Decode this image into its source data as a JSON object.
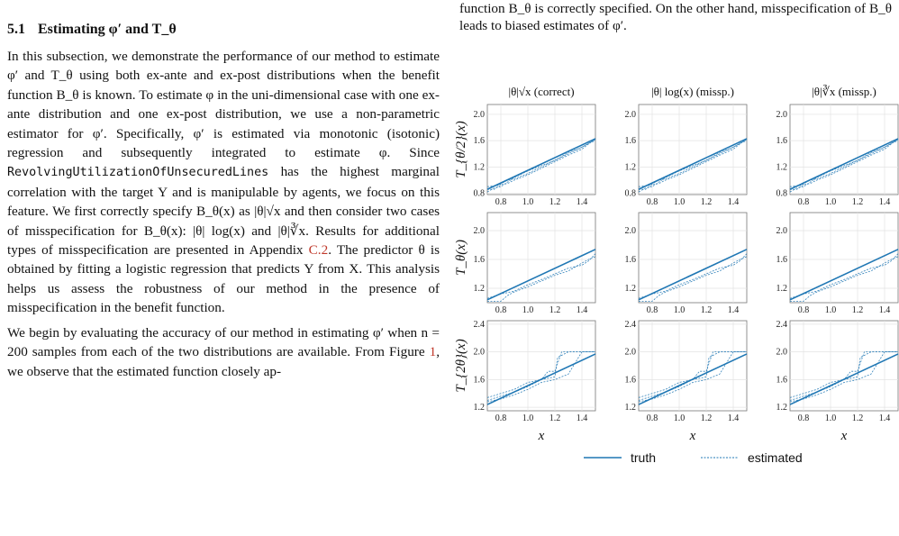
{
  "section": {
    "number": "5.1",
    "title": "Estimating φ′ and T_θ"
  },
  "left_paragraphs": {
    "p1_a": "In this subsection, we demonstrate the performance of our method to estimate φ′ and T_θ using both ex-ante and ex-post distributions when the benefit function B_θ is known. To estimate φ in the uni-dimensional case with one ex-ante distribution and one ex-post distribution, we use a non-parametric estimator for φ′. Specifically, φ′ is estimated via monotonic (isotonic) regression and subsequently integrated to estimate φ. Since",
    "p1_code": "RevolvingUtilizationOfUnsecuredLines",
    "p1_b": "has the highest marginal correlation with the target Y and is manipulable by agents, we focus on this feature. We first correctly specify B_θ(x) as |θ|√x and then consider two cases of misspecification for B_θ(x): |θ| log(x) and |θ|∛x. Results for additional types of misspecification are presented in Appendix",
    "p1_ref": "C.2",
    "p1_c": ". The predictor θ is obtained by fitting a logistic regression that predicts Y from X. This analysis helps us assess the robustness of our method in the presence of misspecification in the benefit function.",
    "p2_a": "We begin by evaluating the accuracy of our method in estimating φ′ when n = 200 samples from each of the two distributions are available. From Figure",
    "p2_ref": "1",
    "p2_b": ", we observe that the estimated function closely ap-"
  },
  "right_top_text": "function B_θ is correctly specified. On the other hand, misspecification of B_θ leads to biased estimates of φ′.",
  "chart_data": {
    "type": "line",
    "columns": [
      "|θ|√x (correct)",
      "|θ| log(x) (missp.)",
      "|θ|∛x (missp.)"
    ],
    "rows": [
      {
        "ylabel": "T_{θ/2}(x)",
        "ylim": [
          0.78,
          2.15
        ],
        "yticks": [
          0.8,
          1.2,
          1.6,
          2.0
        ]
      },
      {
        "ylabel": "T_θ(x)",
        "ylim": [
          1.0,
          2.25
        ],
        "yticks": [
          1.2,
          1.6,
          2.0
        ]
      },
      {
        "ylabel": "T_{2θ}(x)",
        "ylim": [
          1.15,
          2.45
        ],
        "yticks": [
          1.2,
          1.6,
          2.0,
          2.4
        ]
      }
    ],
    "xlim": [
      0.7,
      1.5
    ],
    "xticks": [
      0.8,
      1.0,
      1.2,
      1.4
    ],
    "xlabel": "x",
    "grid": true,
    "legend_position": "bottom",
    "series": [
      {
        "name": "truth",
        "style": "solid",
        "color": "#1f77b4"
      },
      {
        "name": "estimated",
        "style": "dashed",
        "color": "#1f77b4"
      }
    ],
    "truth_lines": [
      {
        "row": 0,
        "x": [
          0.7,
          1.5
        ],
        "y": [
          0.86,
          1.63
        ]
      },
      {
        "row": 1,
        "x": [
          0.7,
          1.5
        ],
        "y": [
          1.04,
          1.74
        ]
      },
      {
        "row": 2,
        "x": [
          0.7,
          1.5
        ],
        "y": [
          1.24,
          1.97
        ]
      }
    ],
    "estimated": [
      [
        {
          "x": [
            0.7,
            0.75,
            0.8,
            0.85,
            0.9,
            1.0,
            1.1,
            1.2,
            1.3,
            1.4,
            1.45,
            1.5
          ],
          "y": [
            0.86,
            0.86,
            0.93,
            0.95,
            1.0,
            1.08,
            1.18,
            1.28,
            1.38,
            1.47,
            1.55,
            1.63
          ]
        },
        {
          "x": [
            0.7,
            0.75,
            0.8,
            0.85,
            0.9,
            1.0,
            1.1,
            1.2,
            1.3,
            1.4,
            1.45,
            1.5
          ],
          "y": [
            0.82,
            0.88,
            0.9,
            0.97,
            1.04,
            1.14,
            1.22,
            1.3,
            1.4,
            1.5,
            1.56,
            1.6
          ]
        },
        {
          "x": [
            0.7,
            0.78,
            0.85,
            0.9,
            1.0,
            1.1,
            1.2,
            1.3,
            1.4,
            1.5
          ],
          "y": [
            0.9,
            0.92,
            1.0,
            1.02,
            1.1,
            1.2,
            1.3,
            1.42,
            1.5,
            1.62
          ]
        }
      ],
      [
        {
          "x": [
            0.7,
            0.8,
            0.85,
            0.9,
            1.0,
            1.1,
            1.2,
            1.3,
            1.4,
            1.45,
            1.5
          ],
          "y": [
            1.02,
            1.02,
            1.1,
            1.15,
            1.22,
            1.3,
            1.38,
            1.44,
            1.55,
            1.6,
            1.64
          ]
        },
        {
          "x": [
            0.7,
            0.8,
            0.9,
            1.0,
            1.1,
            1.2,
            1.3,
            1.4,
            1.45,
            1.5
          ],
          "y": [
            1.06,
            1.12,
            1.16,
            1.25,
            1.32,
            1.4,
            1.48,
            1.52,
            1.58,
            1.68
          ]
        }
      ],
      [
        {
          "x": [
            0.7,
            0.8,
            0.9,
            1.0,
            1.1,
            1.15,
            1.2,
            1.25,
            1.3,
            1.5
          ],
          "y": [
            1.3,
            1.36,
            1.42,
            1.5,
            1.6,
            1.72,
            1.72,
            2.0,
            2.0,
            2.0
          ]
        },
        {
          "x": [
            0.7,
            0.8,
            0.9,
            1.0,
            1.1,
            1.2,
            1.22,
            1.3,
            1.5
          ],
          "y": [
            1.34,
            1.4,
            1.46,
            1.56,
            1.6,
            1.64,
            1.92,
            2.0,
            2.0
          ]
        },
        {
          "x": [
            0.7,
            0.8,
            0.9,
            1.0,
            1.1,
            1.2,
            1.3,
            1.35,
            1.4,
            1.5
          ],
          "y": [
            1.28,
            1.32,
            1.38,
            1.46,
            1.56,
            1.6,
            1.68,
            1.84,
            2.0,
            2.0
          ]
        }
      ]
    ]
  }
}
